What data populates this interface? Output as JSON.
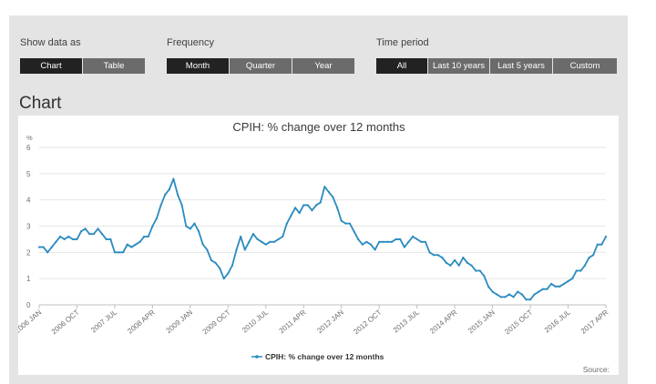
{
  "controls": {
    "show_data_as": {
      "label": "Show data as",
      "options": [
        "Chart",
        "Table"
      ],
      "selected": "Chart"
    },
    "frequency": {
      "label": "Frequency",
      "options": [
        "Month",
        "Quarter",
        "Year"
      ],
      "selected": "Month"
    },
    "time_period": {
      "label": "Time period",
      "options": [
        "All",
        "Last 10 years",
        "Last 5 years",
        "Custom"
      ],
      "selected": "All"
    }
  },
  "section_heading": "Chart",
  "source_label": "Source:",
  "colors": {
    "series": "#2a8bbf",
    "active_button": "#222222",
    "inactive_button": "#6b6b6b",
    "panel": "#e4e4e4"
  },
  "chart_data": {
    "type": "line",
    "title": "CPIH: % change over 12 months",
    "ylabel": "%",
    "ylim": [
      0,
      6
    ],
    "y_ticks": [
      0,
      1,
      2,
      3,
      4,
      5,
      6
    ],
    "grid": true,
    "legend_position": "bottom-center",
    "x_tick_labels": [
      "2006 JAN",
      "2006 OCT",
      "2007 JUL",
      "2008 APR",
      "2009 JAN",
      "2009 OCT",
      "2010 JUL",
      "2011 APR",
      "2012 JAN",
      "2012 OCT",
      "2013 JUL",
      "2014 APR",
      "2015 JAN",
      "2015 OCT",
      "2016 JUL",
      "2017 APR"
    ],
    "x_start": "2006 JAN",
    "x_end": "2017 APR",
    "series": [
      {
        "name": "CPIH: % change over 12 months",
        "values": [
          2.2,
          2.2,
          2.0,
          2.2,
          2.4,
          2.6,
          2.5,
          2.6,
          2.5,
          2.5,
          2.8,
          2.9,
          2.7,
          2.7,
          2.9,
          2.7,
          2.5,
          2.5,
          2.0,
          2.0,
          2.0,
          2.3,
          2.2,
          2.3,
          2.4,
          2.6,
          2.6,
          3.0,
          3.3,
          3.8,
          4.2,
          4.4,
          4.8,
          4.2,
          3.8,
          3.0,
          2.9,
          3.1,
          2.8,
          2.3,
          2.1,
          1.7,
          1.6,
          1.4,
          1.0,
          1.2,
          1.5,
          2.1,
          2.6,
          2.1,
          2.4,
          2.7,
          2.5,
          2.4,
          2.3,
          2.4,
          2.4,
          2.5,
          2.6,
          3.1,
          3.4,
          3.7,
          3.5,
          3.8,
          3.8,
          3.6,
          3.8,
          3.9,
          4.5,
          4.3,
          4.1,
          3.7,
          3.2,
          3.1,
          3.1,
          2.8,
          2.5,
          2.3,
          2.4,
          2.3,
          2.1,
          2.4,
          2.4,
          2.4,
          2.4,
          2.5,
          2.5,
          2.2,
          2.4,
          2.6,
          2.5,
          2.4,
          2.4,
          2.0,
          1.9,
          1.9,
          1.8,
          1.6,
          1.5,
          1.7,
          1.5,
          1.8,
          1.6,
          1.5,
          1.3,
          1.3,
          1.1,
          0.7,
          0.5,
          0.4,
          0.3,
          0.3,
          0.4,
          0.3,
          0.5,
          0.4,
          0.2,
          0.2,
          0.4,
          0.5,
          0.6,
          0.6,
          0.8,
          0.7,
          0.7,
          0.8,
          0.9,
          1.0,
          1.3,
          1.3,
          1.5,
          1.8,
          1.9,
          2.3,
          2.3,
          2.6
        ]
      }
    ]
  }
}
